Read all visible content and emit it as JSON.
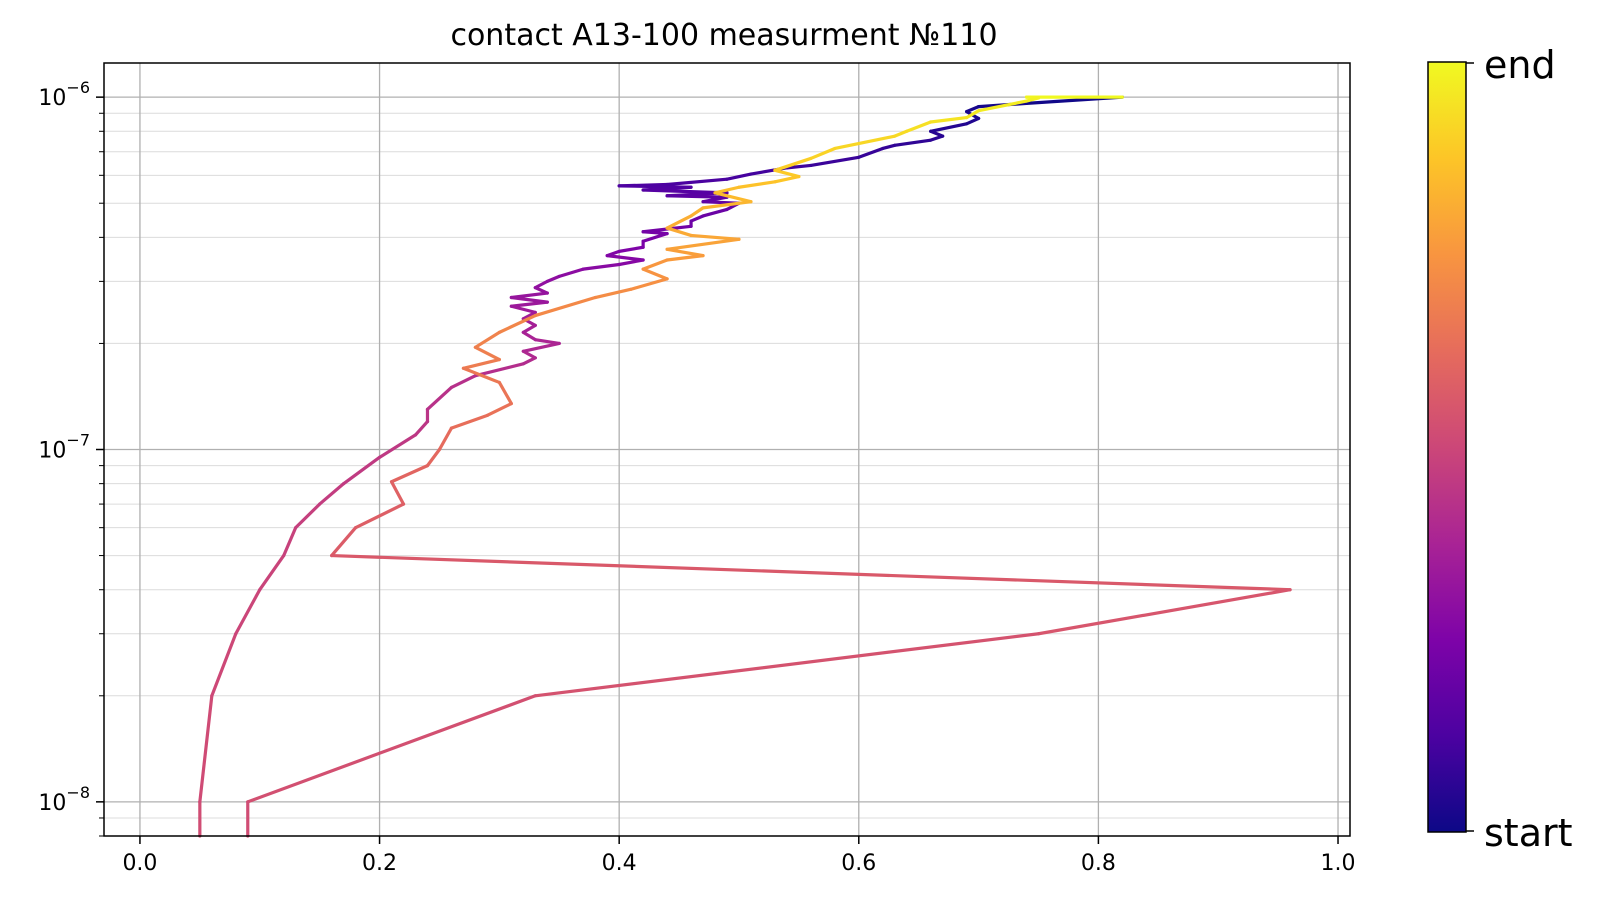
{
  "chart_data": {
    "type": "line",
    "title": "contact A13-100 measurment №110",
    "xlabel": "",
    "ylabel": "",
    "xlim": [
      -0.03,
      1.01
    ],
    "ylim": [
      8e-09,
      1.25e-06
    ],
    "yscale": "log",
    "grid": true,
    "x_ticks": [
      {
        "value": 0.0,
        "label": "0.0"
      },
      {
        "value": 0.2,
        "label": "0.2"
      },
      {
        "value": 0.4,
        "label": "0.4"
      },
      {
        "value": 0.6,
        "label": "0.6"
      },
      {
        "value": 0.8,
        "label": "0.8"
      },
      {
        "value": 1.0,
        "label": "1.0"
      }
    ],
    "y_ticks": [
      {
        "value": 1e-08,
        "base": "10",
        "exponent": "−8"
      },
      {
        "value": 1e-07,
        "base": "10",
        "exponent": "−7"
      },
      {
        "value": 1e-06,
        "base": "10",
        "exponent": "−6"
      }
    ],
    "colormap": "plasma",
    "colorbar": {
      "start_label": "start",
      "end_label": "end",
      "location": "right"
    },
    "points": [
      [
        0.05,
        8e-09
      ],
      [
        0.05,
        1e-08
      ],
      [
        0.06,
        2e-08
      ],
      [
        0.08,
        3e-08
      ],
      [
        0.1,
        4e-08
      ],
      [
        0.12,
        5e-08
      ],
      [
        0.13,
        6e-08
      ],
      [
        0.15,
        7e-08
      ],
      [
        0.17,
        8e-08
      ],
      [
        0.2,
        9.5e-08
      ],
      [
        0.23,
        1.1e-07
      ],
      [
        0.24,
        1.2e-07
      ],
      [
        0.24,
        1.3e-07
      ],
      [
        0.26,
        1.5e-07
      ],
      [
        0.28,
        1.62e-07
      ],
      [
        0.32,
        1.75e-07
      ],
      [
        0.33,
        1.82e-07
      ],
      [
        0.32,
        1.9e-07
      ],
      [
        0.35,
        2e-07
      ],
      [
        0.33,
        2.05e-07
      ],
      [
        0.32,
        2.15e-07
      ],
      [
        0.33,
        2.25e-07
      ],
      [
        0.32,
        2.35e-07
      ],
      [
        0.33,
        2.45e-07
      ],
      [
        0.31,
        2.55e-07
      ],
      [
        0.34,
        2.62e-07
      ],
      [
        0.31,
        2.7e-07
      ],
      [
        0.34,
        2.78e-07
      ],
      [
        0.33,
        2.88e-07
      ],
      [
        0.34,
        3e-07
      ],
      [
        0.35,
        3.1e-07
      ],
      [
        0.37,
        3.25e-07
      ],
      [
        0.4,
        3.35e-07
      ],
      [
        0.42,
        3.45e-07
      ],
      [
        0.39,
        3.55e-07
      ],
      [
        0.4,
        3.65e-07
      ],
      [
        0.42,
        3.75e-07
      ],
      [
        0.42,
        3.9e-07
      ],
      [
        0.44,
        4.1e-07
      ],
      [
        0.42,
        4.15e-07
      ],
      [
        0.46,
        4.3e-07
      ],
      [
        0.46,
        4.45e-07
      ],
      [
        0.47,
        4.6e-07
      ],
      [
        0.49,
        4.8e-07
      ],
      [
        0.5,
        5e-07
      ],
      [
        0.47,
        5.05e-07
      ],
      [
        0.49,
        5.2e-07
      ],
      [
        0.44,
        5.25e-07
      ],
      [
        0.49,
        5.35e-07
      ],
      [
        0.42,
        5.45e-07
      ],
      [
        0.46,
        5.55e-07
      ],
      [
        0.4,
        5.6e-07
      ],
      [
        0.44,
        5.65e-07
      ],
      [
        0.49,
        5.85e-07
      ],
      [
        0.51,
        6.05e-07
      ],
      [
        0.54,
        6.3e-07
      ],
      [
        0.56,
        6.4e-07
      ],
      [
        0.6,
        6.75e-07
      ],
      [
        0.62,
        7.15e-07
      ],
      [
        0.63,
        7.3e-07
      ],
      [
        0.66,
        7.55e-07
      ],
      [
        0.67,
        7.75e-07
      ],
      [
        0.66,
        8e-07
      ],
      [
        0.69,
        8.4e-07
      ],
      [
        0.7,
        8.7e-07
      ],
      [
        0.69,
        9.1e-07
      ],
      [
        0.7,
        9.4e-07
      ],
      [
        0.74,
        9.6e-07
      ],
      [
        0.82,
        1e-06
      ],
      [
        0.74,
        1e-06
      ],
      [
        0.75,
        9.95e-07
      ],
      [
        0.74,
        9.75e-07
      ],
      [
        0.7,
        9.15e-07
      ],
      [
        0.69,
        8.75e-07
      ],
      [
        0.66,
        8.5e-07
      ],
      [
        0.64,
        8e-07
      ],
      [
        0.63,
        7.75e-07
      ],
      [
        0.58,
        7.15e-07
      ],
      [
        0.56,
        6.7e-07
      ],
      [
        0.53,
        6.2e-07
      ],
      [
        0.55,
        5.95e-07
      ],
      [
        0.53,
        5.75e-07
      ],
      [
        0.5,
        5.55e-07
      ],
      [
        0.48,
        5.35e-07
      ],
      [
        0.51,
        5.05e-07
      ],
      [
        0.47,
        4.85e-07
      ],
      [
        0.46,
        4.6e-07
      ],
      [
        0.44,
        4.25e-07
      ],
      [
        0.46,
        4.05e-07
      ],
      [
        0.5,
        3.95e-07
      ],
      [
        0.44,
        3.7e-07
      ],
      [
        0.47,
        3.55e-07
      ],
      [
        0.44,
        3.45e-07
      ],
      [
        0.42,
        3.25e-07
      ],
      [
        0.44,
        3.05e-07
      ],
      [
        0.41,
        2.85e-07
      ],
      [
        0.38,
        2.7e-07
      ],
      [
        0.33,
        2.4e-07
      ],
      [
        0.3,
        2.15e-07
      ],
      [
        0.28,
        1.95e-07
      ],
      [
        0.3,
        1.8e-07
      ],
      [
        0.27,
        1.7e-07
      ],
      [
        0.3,
        1.55e-07
      ],
      [
        0.31,
        1.35e-07
      ],
      [
        0.29,
        1.25e-07
      ],
      [
        0.26,
        1.15e-07
      ],
      [
        0.25,
        1e-07
      ],
      [
        0.24,
        9e-08
      ],
      [
        0.21,
        8.1e-08
      ],
      [
        0.22,
        7e-08
      ],
      [
        0.18,
        6e-08
      ],
      [
        0.16,
        5e-08
      ],
      [
        0.96,
        4e-08
      ],
      [
        0.75,
        3e-08
      ],
      [
        0.33,
        2e-08
      ],
      [
        0.09,
        1e-08
      ],
      [
        0.09,
        8e-09
      ]
    ]
  }
}
